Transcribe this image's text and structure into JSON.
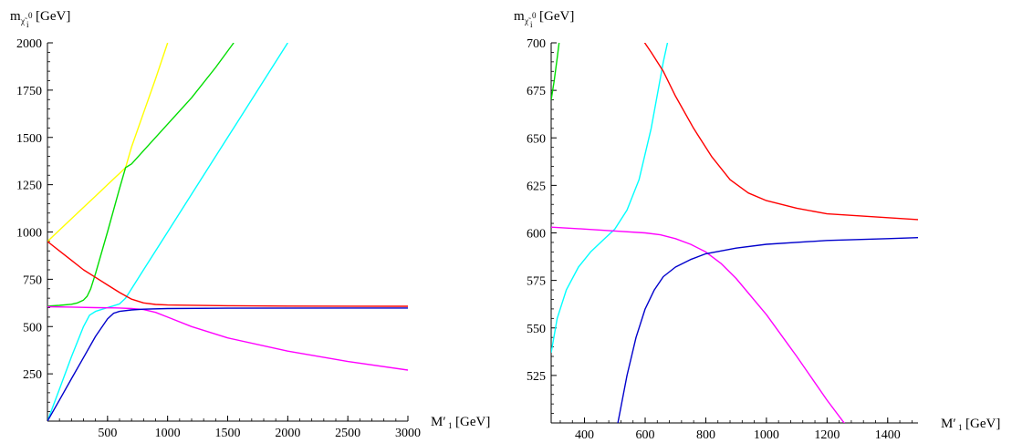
{
  "chart_data": [
    {
      "type": "line",
      "xlabel": "M′1 [GeV]",
      "ylabel": "m χ̃i0 [GeV]",
      "xlim": [
        0,
        3000
      ],
      "ylim": [
        0,
        2000
      ],
      "xticks": [
        500,
        1000,
        1500,
        2000,
        2500,
        3000
      ],
      "yticks": [
        250,
        500,
        750,
        1000,
        1250,
        1500,
        1750,
        2000
      ],
      "series": [
        {
          "color": "#ffff00",
          "x": [
            0,
            100,
            200,
            300,
            400,
            500,
            600,
            650,
            700,
            800,
            900,
            1000
          ],
          "y": [
            950,
            1010,
            1070,
            1130,
            1190,
            1250,
            1310,
            1340,
            1450,
            1630,
            1810,
            2000
          ]
        },
        {
          "color": "#00dd00",
          "x": [
            0,
            100,
            200,
            250,
            300,
            330,
            360,
            400,
            500,
            600,
            650,
            700,
            800,
            1000,
            1200,
            1400,
            1550
          ],
          "y": [
            608,
            612,
            618,
            625,
            640,
            660,
            700,
            780,
            1000,
            1230,
            1340,
            1360,
            1430,
            1570,
            1710,
            1870,
            2000
          ]
        },
        {
          "color": "#00ffff",
          "x": [
            0,
            100,
            200,
            300,
            350,
            400,
            500,
            600,
            650,
            700,
            800,
            1000,
            1200,
            1400,
            1600,
            1800,
            2000
          ],
          "y": [
            0,
            170,
            340,
            500,
            560,
            580,
            600,
            620,
            650,
            700,
            800,
            1000,
            1200,
            1400,
            1600,
            1800,
            2000
          ]
        },
        {
          "color": "#ff0000",
          "x": [
            0,
            100,
            200,
            300,
            400,
            500,
            600,
            700,
            800,
            900,
            1000,
            1500,
            2000,
            3000
          ],
          "y": [
            950,
            900,
            850,
            800,
            760,
            720,
            680,
            645,
            625,
            617,
            614,
            610,
            608,
            607
          ]
        },
        {
          "color": "#ff00ff",
          "x": [
            0,
            200,
            400,
            600,
            700,
            800,
            900,
            1000,
            1200,
            1500,
            2000,
            2500,
            3000
          ],
          "y": [
            605,
            603,
            600,
            598,
            595,
            590,
            575,
            550,
            500,
            440,
            370,
            315,
            270
          ]
        },
        {
          "color": "#0000cc",
          "x": [
            0,
            100,
            200,
            300,
            400,
            500,
            550,
            600,
            700,
            800,
            1000,
            1500,
            3000
          ],
          "y": [
            0,
            112,
            224,
            336,
            448,
            540,
            570,
            580,
            588,
            592,
            595,
            597,
            598
          ]
        }
      ]
    },
    {
      "type": "line",
      "xlabel": "M′1 [GeV]",
      "ylabel": "m χ̃i0 [GeV]",
      "xlim": [
        290,
        1500
      ],
      "ylim": [
        500,
        700
      ],
      "xticks": [
        400,
        600,
        800,
        1000,
        1200,
        1400
      ],
      "yticks": [
        525,
        550,
        575,
        600,
        625,
        650,
        675,
        700
      ],
      "series": [
        {
          "color": "#00dd00",
          "x": [
            290,
            300,
            310,
            320
          ],
          "y": [
            670,
            680,
            692,
            705
          ]
        },
        {
          "color": "#00ffff",
          "x": [
            290,
            310,
            340,
            380,
            420,
            460,
            500,
            540,
            580,
            620,
            660,
            690
          ],
          "y": [
            537,
            555,
            570,
            582,
            590,
            596,
            602,
            612,
            628,
            655,
            690,
            712
          ]
        },
        {
          "color": "#ff0000",
          "x": [
            590,
            620,
            660,
            700,
            760,
            820,
            880,
            940,
            1000,
            1100,
            1200,
            1300,
            1400,
            1500
          ],
          "y": [
            702,
            695,
            685,
            672,
            655,
            640,
            628,
            621,
            617,
            613,
            610,
            609,
            608,
            607
          ]
        },
        {
          "color": "#ff00ff",
          "x": [
            290,
            400,
            500,
            600,
            650,
            700,
            750,
            800,
            850,
            900,
            1000,
            1100,
            1200,
            1280
          ],
          "y": [
            603,
            602,
            601,
            600,
            599,
            597,
            594,
            590,
            584,
            576,
            557,
            535,
            512,
            495
          ]
        },
        {
          "color": "#0000cc",
          "x": [
            510,
            540,
            570,
            600,
            630,
            660,
            700,
            750,
            800,
            900,
            1000,
            1200,
            1400,
            1500
          ],
          "y": [
            500,
            525,
            545,
            560,
            570,
            577,
            582,
            586,
            589,
            592,
            594,
            596,
            597,
            597.5
          ]
        }
      ]
    }
  ]
}
